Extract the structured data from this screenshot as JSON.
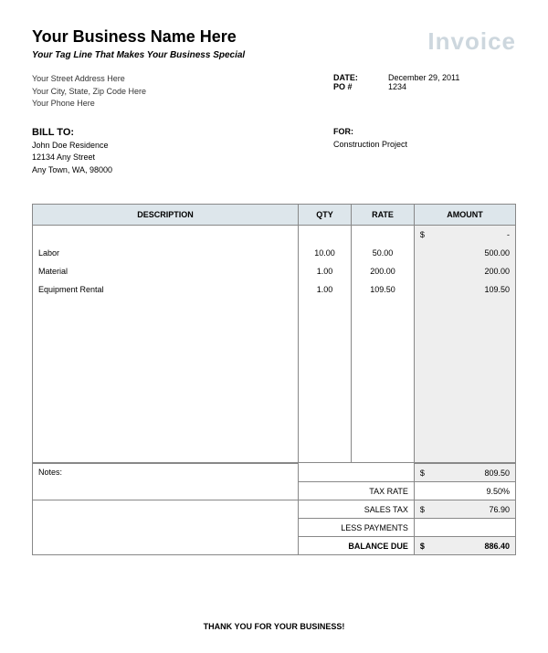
{
  "header": {
    "business_name": "Your Business Name Here",
    "invoice_word": "Invoice",
    "tagline": "Your Tag Line That Makes Your Business Special",
    "address_lines": [
      "Your Street Address Here",
      "Your City, State, Zip Code Here",
      "Your Phone Here"
    ],
    "date_label": "DATE:",
    "date_value": "December 29, 2011",
    "po_label": "PO #",
    "po_value": "1234"
  },
  "billto": {
    "label": "BILL TO:",
    "lines": [
      "John Doe Residence",
      "12134 Any Street",
      "Any Town, WA, 98000"
    ]
  },
  "for": {
    "label": "FOR:",
    "value": "Construction Project"
  },
  "table": {
    "header_bg": "#dde6eb",
    "amount_bg": "#eeeeee",
    "border_color": "#888888",
    "columns": [
      "DESCRIPTION",
      "QTY",
      "RATE",
      "AMOUNT"
    ],
    "currency": "$",
    "first_amount": "-",
    "rows": [
      {
        "desc": "Labor",
        "qty": "10.00",
        "rate": "50.00",
        "amount": "500.00"
      },
      {
        "desc": "Material",
        "qty": "1.00",
        "rate": "200.00",
        "amount": "200.00"
      },
      {
        "desc": "Equipment Rental",
        "qty": "1.00",
        "rate": "109.50",
        "amount": "109.50"
      }
    ],
    "blank_rows": 9,
    "notes_label": "Notes:"
  },
  "summary": {
    "subtotal": "809.50",
    "tax_rate_label": "TAX RATE",
    "tax_rate": "9.50%",
    "sales_tax_label": "SALES TAX",
    "sales_tax": "76.90",
    "less_payments_label": "LESS PAYMENTS",
    "less_payments": "",
    "balance_due_label": "BALANCE DUE",
    "balance_due": "886.40"
  },
  "footer": {
    "thanks": "THANK YOU FOR YOUR BUSINESS!"
  }
}
